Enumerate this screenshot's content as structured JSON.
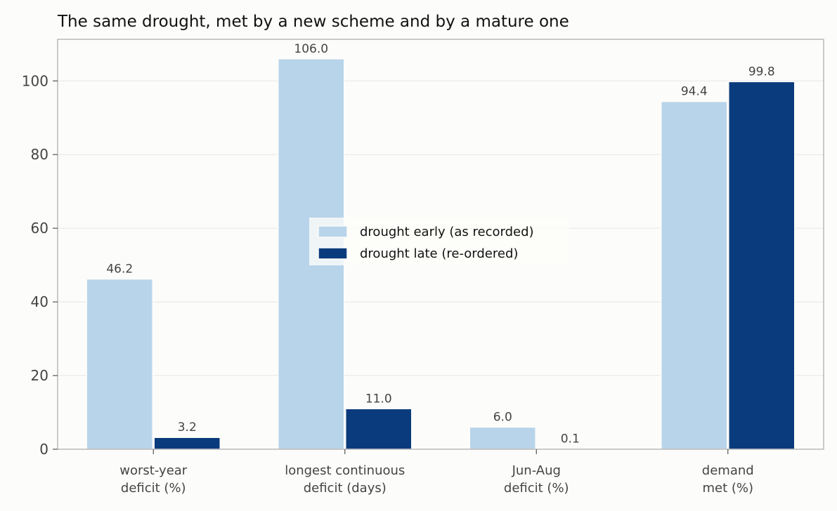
{
  "chart_data": {
    "type": "bar",
    "title": "The same drought, met by a new scheme and by a mature one",
    "xlabel": "",
    "ylabel": "",
    "ylim": [
      0,
      111.3
    ],
    "yticks": [
      0,
      20,
      40,
      60,
      80,
      100
    ],
    "grid": "horizontal",
    "legend_position": "center",
    "categories": [
      [
        "worst-year",
        "deficit (%)"
      ],
      [
        "longest continuous",
        "deficit (days)"
      ],
      [
        "Jun-Aug",
        "deficit (%)"
      ],
      [
        "demand",
        "met (%)"
      ]
    ],
    "series": [
      {
        "name": "drought early (as recorded)",
        "color": "#b8d4ea",
        "values": [
          46.2,
          106.0,
          6.0,
          94.4
        ],
        "labels": [
          "46.2",
          "106.0",
          "6.0",
          "94.4"
        ]
      },
      {
        "name": "drought late (re-ordered)",
        "color": "#0a3b7c",
        "values": [
          3.2,
          11.0,
          0.1,
          99.8
        ],
        "labels": [
          "3.2",
          "11.0",
          "0.1",
          "99.8"
        ]
      }
    ]
  }
}
